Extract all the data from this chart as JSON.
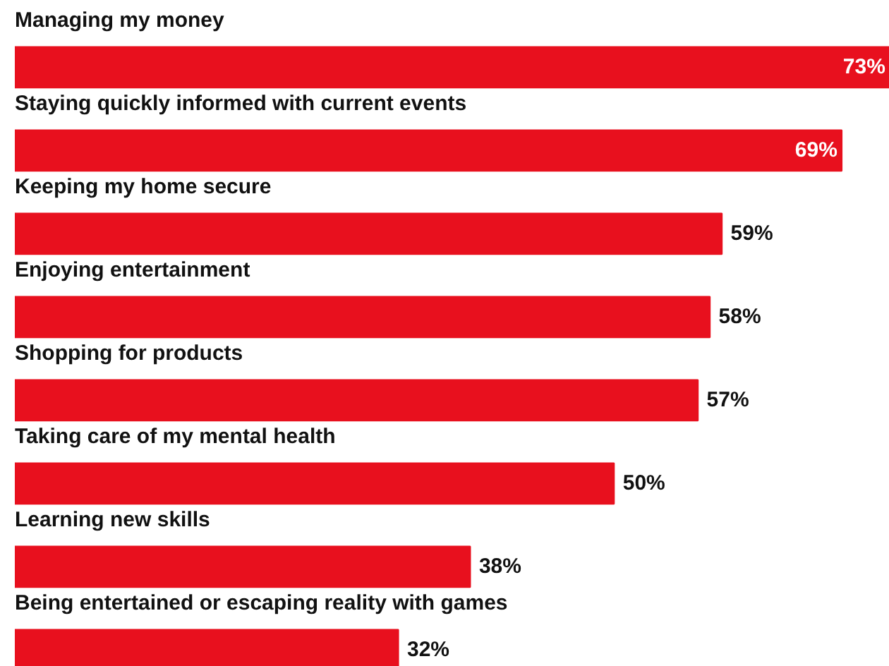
{
  "chart_data": {
    "type": "bar",
    "orientation": "horizontal",
    "categories": [
      "Managing my money",
      "Staying quickly informed with current events",
      "Keeping my home secure",
      "Enjoying entertainment",
      "Shopping for products",
      "Taking care of my mental health",
      "Learning new skills",
      "Being entertained or escaping reality with games"
    ],
    "values": [
      73,
      69,
      59,
      58,
      57,
      50,
      38,
      32
    ],
    "value_labels": [
      "73%",
      "69%",
      "59%",
      "58%",
      "57%",
      "50%",
      "38%",
      "32%"
    ],
    "color": "#e8101e",
    "xlim": [
      0,
      73
    ],
    "tick_labels": false,
    "grid": false
  }
}
